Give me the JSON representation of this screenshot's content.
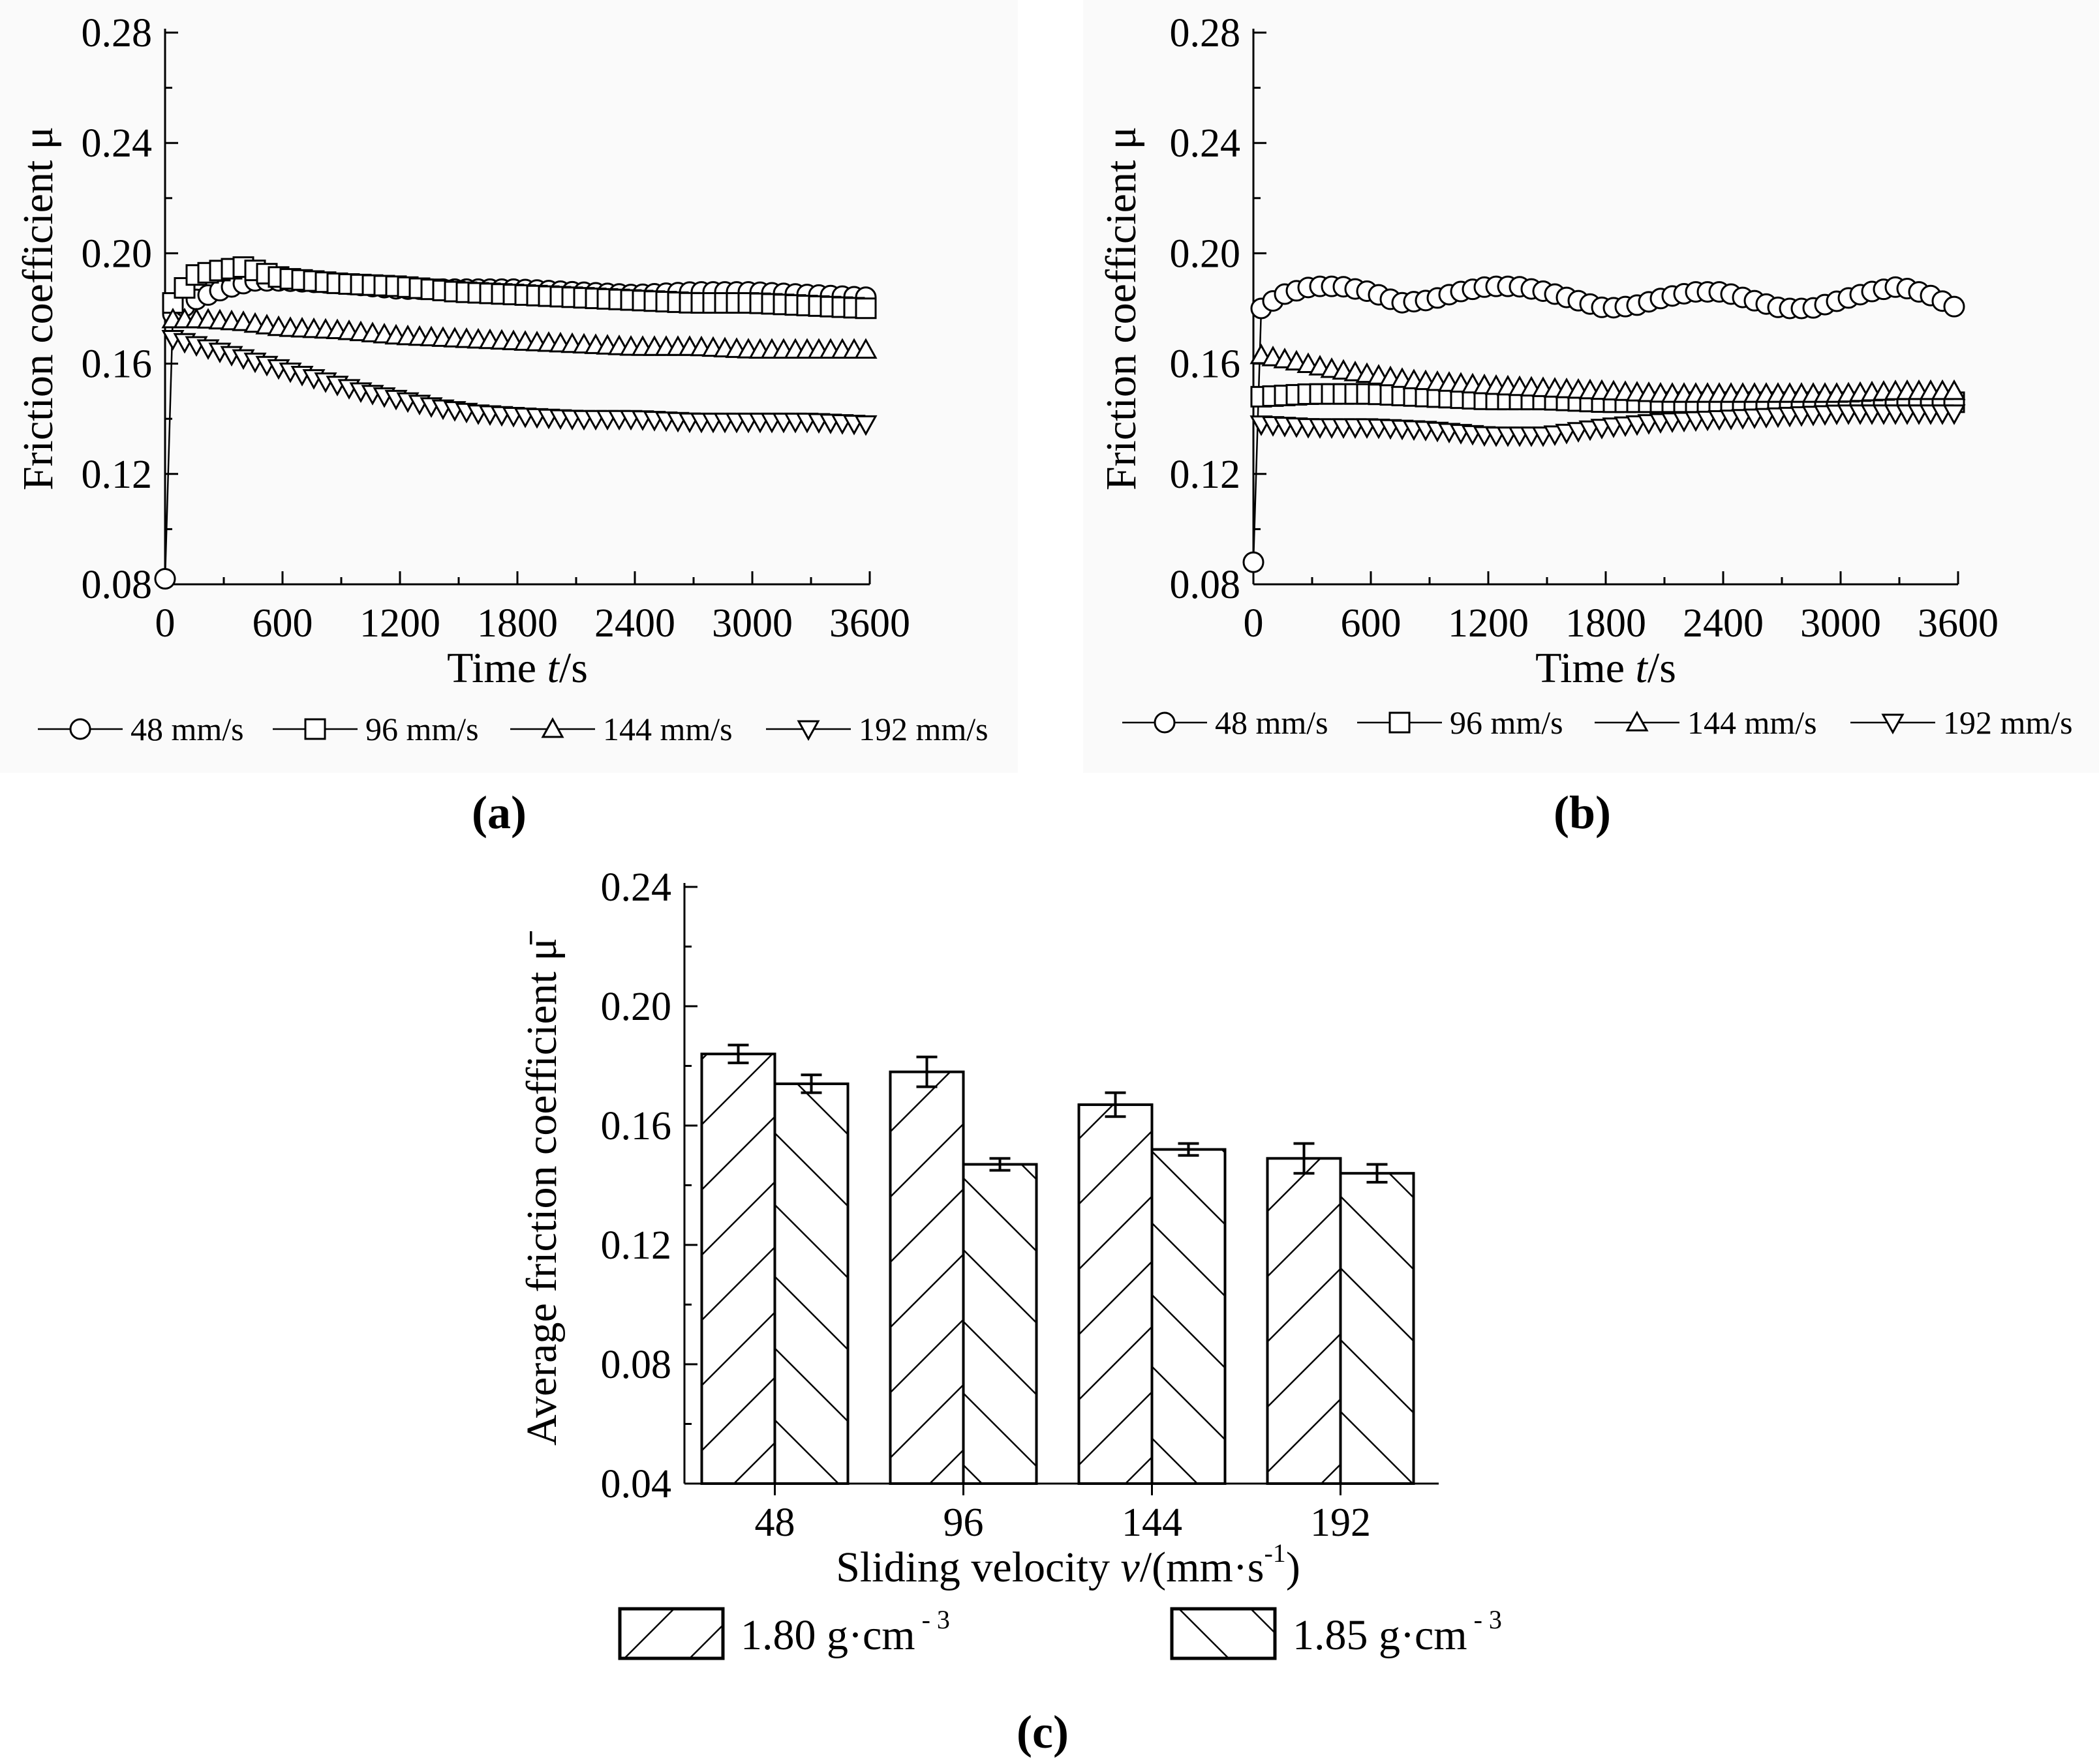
{
  "captions": {
    "a": "(a)",
    "b": "(b)",
    "c": "(c)"
  },
  "chart_data": [
    {
      "id": "a",
      "type": "line",
      "ylabel": "Friction coefficient μ",
      "xlabel": "Time t/s",
      "xlim": [
        0,
        3600
      ],
      "ylim": [
        0.08,
        0.28
      ],
      "xticks": [
        "0",
        "600",
        "1200",
        "1800",
        "2400",
        "3000",
        "3600"
      ],
      "yticks": [
        "0.08",
        "0.12",
        "0.16",
        "0.20",
        "0.24",
        "0.28"
      ],
      "grid": false,
      "legend_position": "bottom",
      "series": [
        {
          "name": "48 mm/s",
          "marker": "circle",
          "x": [
            0,
            40,
            150,
            300,
            450,
            600,
            900,
            1200,
            1500,
            1800,
            2100,
            2400,
            2700,
            3000,
            3300,
            3600
          ],
          "y": [
            0.082,
            0.178,
            0.183,
            0.187,
            0.19,
            0.19,
            0.189,
            0.187,
            0.187,
            0.187,
            0.186,
            0.185,
            0.186,
            0.186,
            0.185,
            0.184
          ]
        },
        {
          "name": "96 mm/s",
          "marker": "square",
          "x": [
            40,
            150,
            300,
            400,
            500,
            600,
            900,
            1200,
            1500,
            1800,
            2100,
            2400,
            2700,
            3000,
            3300,
            3600
          ],
          "y": [
            0.182,
            0.192,
            0.194,
            0.195,
            0.193,
            0.191,
            0.189,
            0.188,
            0.186,
            0.185,
            0.184,
            0.183,
            0.182,
            0.182,
            0.181,
            0.18
          ]
        },
        {
          "name": "144 mm/s",
          "marker": "triangle-up",
          "x": [
            40,
            200,
            400,
            600,
            900,
            1200,
            1500,
            1800,
            2100,
            2400,
            2700,
            3000,
            3300,
            3600
          ],
          "y": [
            0.176,
            0.176,
            0.175,
            0.173,
            0.172,
            0.17,
            0.169,
            0.168,
            0.167,
            0.166,
            0.166,
            0.165,
            0.165,
            0.165
          ]
        },
        {
          "name": "192 mm/s",
          "marker": "triangle-down",
          "x": [
            40,
            200,
            400,
            600,
            800,
            1000,
            1200,
            1400,
            1600,
            1800,
            2100,
            2400,
            2700,
            3000,
            3300,
            3600
          ],
          "y": [
            0.169,
            0.166,
            0.162,
            0.158,
            0.154,
            0.15,
            0.147,
            0.144,
            0.142,
            0.141,
            0.14,
            0.14,
            0.139,
            0.139,
            0.139,
            0.138
          ]
        }
      ]
    },
    {
      "id": "b",
      "type": "line",
      "ylabel": "Friction coefficient μ",
      "xlabel": "Time t/s",
      "xlim": [
        0,
        3600
      ],
      "ylim": [
        0.08,
        0.28
      ],
      "xticks": [
        "0",
        "600",
        "1200",
        "1800",
        "2400",
        "3000",
        "3600"
      ],
      "yticks": [
        "0.08",
        "0.12",
        "0.16",
        "0.20",
        "0.24",
        "0.28"
      ],
      "grid": false,
      "legend_position": "bottom",
      "series": [
        {
          "name": "48 mm/s",
          "marker": "circle",
          "x": [
            0,
            40,
            150,
            300,
            450,
            600,
            750,
            900,
            1050,
            1200,
            1350,
            1500,
            1650,
            1800,
            1950,
            2100,
            2250,
            2400,
            2550,
            2700,
            2850,
            3000,
            3150,
            3300,
            3450,
            3600
          ],
          "y": [
            0.088,
            0.18,
            0.185,
            0.188,
            0.188,
            0.186,
            0.182,
            0.183,
            0.186,
            0.188,
            0.188,
            0.186,
            0.183,
            0.18,
            0.181,
            0.184,
            0.186,
            0.186,
            0.183,
            0.18,
            0.18,
            0.183,
            0.186,
            0.188,
            0.185,
            0.18
          ]
        },
        {
          "name": "96 mm/s",
          "marker": "square",
          "x": [
            40,
            300,
            600,
            900,
            1200,
            1500,
            1800,
            2100,
            2400,
            2700,
            3000,
            3300,
            3600
          ],
          "y": [
            0.148,
            0.149,
            0.149,
            0.148,
            0.147,
            0.147,
            0.146,
            0.146,
            0.146,
            0.146,
            0.146,
            0.146,
            0.146
          ]
        },
        {
          "name": "144 mm/s",
          "marker": "triangle-up",
          "x": [
            40,
            200,
            400,
            600,
            800,
            1000,
            1200,
            1500,
            1800,
            2100,
            2400,
            2700,
            3000,
            3300,
            3600
          ],
          "y": [
            0.163,
            0.161,
            0.158,
            0.156,
            0.154,
            0.153,
            0.152,
            0.151,
            0.15,
            0.149,
            0.149,
            0.149,
            0.149,
            0.15,
            0.15
          ]
        },
        {
          "name": "192 mm/s",
          "marker": "triangle-down",
          "x": [
            40,
            300,
            600,
            900,
            1200,
            1500,
            1800,
            2100,
            2400,
            2700,
            3000,
            3300,
            3600
          ],
          "y": [
            0.138,
            0.137,
            0.137,
            0.136,
            0.134,
            0.134,
            0.137,
            0.139,
            0.14,
            0.141,
            0.142,
            0.142,
            0.142
          ]
        }
      ]
    },
    {
      "id": "c",
      "type": "bar",
      "ylabel": "Average friction coefficient μ̄",
      "xlabel_main": "Sliding velocity ",
      "xlabel_var": "v",
      "xlabel_rest": "/(mm·s",
      "xlabel_sup": "-1",
      "xlabel_close": ")",
      "categories": [
        "48",
        "96",
        "144",
        "192"
      ],
      "ylim": [
        0.04,
        0.24
      ],
      "yticks": [
        "0.04",
        "0.08",
        "0.12",
        "0.16",
        "0.20",
        "0.24"
      ],
      "legend_position": "bottom",
      "series": [
        {
          "name": "1.80 g·cm",
          "sup": "- 3",
          "hatch": "forward",
          "values": [
            0.184,
            0.178,
            0.167,
            0.149
          ],
          "errors": [
            0.003,
            0.005,
            0.004,
            0.005
          ]
        },
        {
          "name": "1.85 g·cm",
          "sup": "- 3",
          "hatch": "backward",
          "values": [
            0.174,
            0.147,
            0.152,
            0.144
          ],
          "errors": [
            0.003,
            0.002,
            0.002,
            0.003
          ]
        }
      ]
    }
  ]
}
